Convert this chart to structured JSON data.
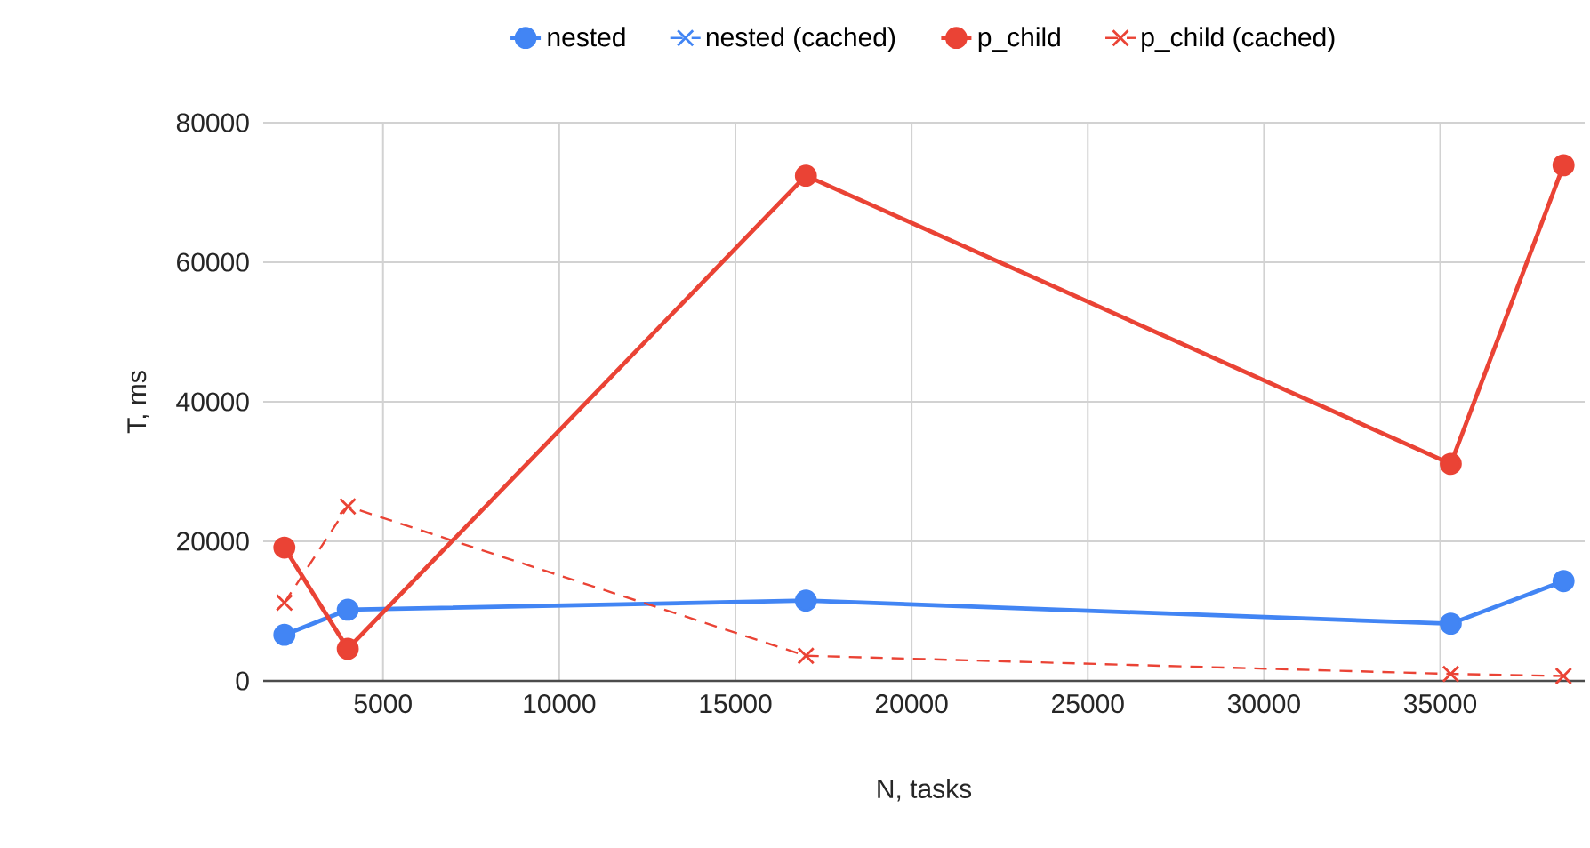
{
  "chart_data": {
    "type": "line",
    "xlabel": "N, tasks",
    "ylabel": "T, ms",
    "x": [
      2200,
      4000,
      17000,
      35300,
      38500
    ],
    "xlim": [
      1600,
      39100
    ],
    "ylim": [
      0,
      80000
    ],
    "xticks": [
      5000,
      10000,
      15000,
      20000,
      25000,
      30000,
      35000
    ],
    "yticks": [
      0,
      20000,
      40000,
      60000,
      80000
    ],
    "grid": true,
    "legend": "top",
    "series": [
      {
        "name": "nested",
        "color": "#4285f4",
        "marker": "circle",
        "line_style": "solid",
        "values": [
          6600,
          10200,
          11500,
          8200,
          14300
        ]
      },
      {
        "name": "nested (cached)",
        "color": "#4285f4",
        "marker": "cross",
        "line_style": "dashed",
        "values": [
          null,
          null,
          null,
          null,
          null
        ]
      },
      {
        "name": "p_child",
        "color": "#ea4335",
        "marker": "circle",
        "line_style": "solid",
        "values": [
          19100,
          4600,
          72400,
          31100,
          73900
        ]
      },
      {
        "name": "p_child (cached)",
        "color": "#ea4335",
        "marker": "cross",
        "line_style": "dashed",
        "values": [
          11200,
          25000,
          3600,
          1000,
          700
        ]
      }
    ]
  }
}
